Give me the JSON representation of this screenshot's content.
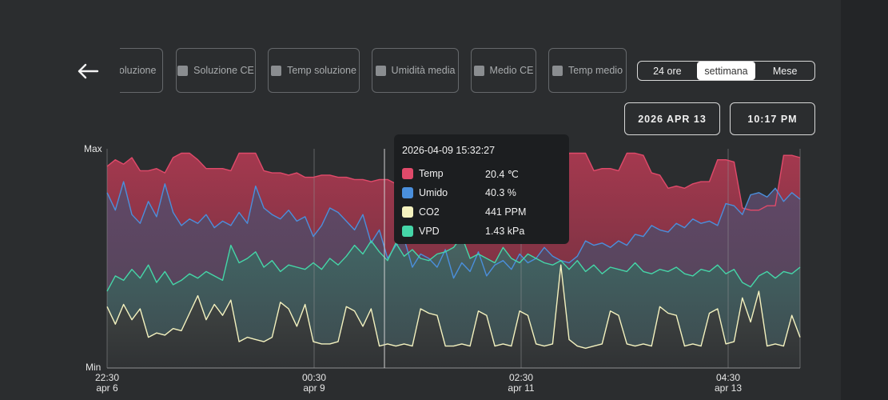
{
  "back_icon": "arrow-left-icon",
  "filters": [
    {
      "label": "Soluzione",
      "checked": false
    },
    {
      "label": "Soluzione CE",
      "checked": false
    },
    {
      "label": "Temp soluzione",
      "checked": false
    },
    {
      "label": "Umidità media",
      "checked": false
    },
    {
      "label": "Medio CE",
      "checked": false
    },
    {
      "label": "Temp medio",
      "checked": false
    }
  ],
  "range_toggle": {
    "options": [
      "24 ore",
      "settimana",
      "Mese"
    ],
    "selected": "settimana"
  },
  "date_button": "2026 APR 13",
  "time_button": "10:17 PM",
  "tooltip": {
    "timestamp": "2026-04-09 15:32:27",
    "rows": [
      {
        "label": "Temp",
        "value": "20.4 ℃",
        "color": "#e04a6a"
      },
      {
        "label": "Umido",
        "value": "40.3 %",
        "color": "#4a8fdc"
      },
      {
        "label": "CO2",
        "value": "441 PPM",
        "color": "#f4f2bf"
      },
      {
        "label": "VPD",
        "value": "1.43 kPa",
        "color": "#45d6a8"
      }
    ]
  },
  "chart_data": {
    "type": "area",
    "y_axis_labels": {
      "top": "Max",
      "bottom": "Min"
    },
    "ylim": [
      0,
      1
    ],
    "x_ticks": [
      {
        "time": "22:30",
        "date": "apr 6"
      },
      {
        "time": "00:30",
        "date": "apr 9"
      },
      {
        "time": "02:30",
        "date": "apr 11"
      },
      {
        "time": "04:30",
        "date": "apr 13"
      }
    ],
    "cursor_label": "2026-04-09 15:32:27",
    "grid": true,
    "series": [
      {
        "name": "Temp",
        "color": "#e04a6a",
        "values": [
          0.92,
          0.95,
          0.93,
          0.96,
          0.9,
          0.9,
          0.91,
          0.89,
          0.96,
          0.98,
          0.98,
          0.95,
          0.91,
          0.91,
          0.91,
          0.9,
          0.98,
          0.98,
          0.98,
          0.9,
          0.89,
          0.89,
          0.88,
          0.89,
          0.87,
          0.87,
          0.88,
          0.88,
          0.87,
          0.87,
          0.86,
          0.86,
          0.85,
          0.86,
          0.86,
          0.84,
          0.84,
          0.84,
          0.86,
          0.86,
          0.85,
          0.84,
          0.94,
          0.94,
          0.94,
          0.92,
          0.92,
          0.93,
          0.89,
          0.88,
          0.89,
          0.88,
          0.88,
          0.89,
          0.87,
          0.87,
          0.98,
          0.98,
          0.98,
          0.9,
          0.91,
          0.91,
          0.9,
          0.98,
          0.98,
          0.97,
          0.89,
          0.88,
          0.82,
          0.83,
          0.82,
          0.84,
          0.85,
          0.85,
          0.95,
          0.95,
          0.94,
          0.73,
          0.72,
          0.72,
          0.74,
          0.74,
          0.97,
          0.97,
          0.96
        ]
      },
      {
        "name": "Umido",
        "color": "#4a8fdc",
        "values": [
          0.8,
          0.72,
          0.85,
          0.7,
          0.66,
          0.76,
          0.69,
          0.84,
          0.71,
          0.65,
          0.68,
          0.66,
          0.7,
          0.64,
          0.67,
          0.65,
          0.71,
          0.66,
          0.83,
          0.73,
          0.7,
          0.68,
          0.72,
          0.67,
          0.69,
          0.6,
          0.65,
          0.73,
          0.71,
          0.67,
          0.63,
          0.7,
          0.57,
          0.63,
          0.5,
          0.56,
          0.59,
          0.46,
          0.52,
          0.5,
          0.46,
          0.54,
          0.41,
          0.48,
          0.44,
          0.53,
          0.42,
          0.47,
          0.49,
          0.45,
          0.52,
          0.48,
          0.5,
          0.55,
          0.51,
          0.49,
          0.48,
          0.51,
          0.58,
          0.56,
          0.57,
          0.55,
          0.58,
          0.56,
          0.61,
          0.6,
          0.65,
          0.63,
          0.62,
          0.66,
          0.64,
          0.68,
          0.66,
          0.67,
          0.65,
          0.75,
          0.74,
          0.7,
          0.79,
          0.8,
          0.78,
          0.82,
          0.76,
          0.8,
          0.77
        ]
      },
      {
        "name": "VPD",
        "color": "#45d6a8",
        "values": [
          0.35,
          0.42,
          0.4,
          0.45,
          0.41,
          0.47,
          0.39,
          0.44,
          0.38,
          0.4,
          0.43,
          0.41,
          0.44,
          0.42,
          0.4,
          0.56,
          0.48,
          0.5,
          0.53,
          0.46,
          0.49,
          0.44,
          0.47,
          0.46,
          0.45,
          0.48,
          0.45,
          0.5,
          0.47,
          0.51,
          0.56,
          0.52,
          0.58,
          0.53,
          0.49,
          0.57,
          0.51,
          0.54,
          0.5,
          0.49,
          0.52,
          0.53,
          0.55,
          0.6,
          0.5,
          0.52,
          0.5,
          0.48,
          0.55,
          0.5,
          0.48,
          0.52,
          0.5,
          0.48,
          0.47,
          0.49,
          0.45,
          0.49,
          0.44,
          0.47,
          0.43,
          0.46,
          0.45,
          0.44,
          0.48,
          0.44,
          0.43,
          0.45,
          0.44,
          0.46,
          0.43,
          0.42,
          0.45,
          0.44,
          0.47,
          0.43,
          0.45,
          0.39,
          0.37,
          0.42,
          0.44,
          0.41,
          0.44,
          0.43,
          0.46
        ]
      },
      {
        "name": "CO2",
        "color": "#f4f2bf",
        "values": [
          0.28,
          0.2,
          0.29,
          0.22,
          0.27,
          0.14,
          0.16,
          0.15,
          0.18,
          0.17,
          0.25,
          0.33,
          0.22,
          0.29,
          0.24,
          0.31,
          0.12,
          0.14,
          0.13,
          0.12,
          0.14,
          0.3,
          0.27,
          0.19,
          0.29,
          0.12,
          0.11,
          0.11,
          0.12,
          0.28,
          0.26,
          0.19,
          0.27,
          0.1,
          0.11,
          0.1,
          0.11,
          0.1,
          0.27,
          0.25,
          0.24,
          0.1,
          0.1,
          0.11,
          0.1,
          0.26,
          0.24,
          0.1,
          0.11,
          0.1,
          0.26,
          0.24,
          0.11,
          0.1,
          0.11,
          0.47,
          0.13,
          0.1,
          0.09,
          0.1,
          0.11,
          0.26,
          0.24,
          0.11,
          0.1,
          0.11,
          0.1,
          0.28,
          0.25,
          0.24,
          0.1,
          0.11,
          0.1,
          0.25,
          0.27,
          0.11,
          0.12,
          0.32,
          0.21,
          0.35,
          0.1,
          0.11,
          0.1,
          0.24,
          0.14
        ]
      }
    ]
  }
}
